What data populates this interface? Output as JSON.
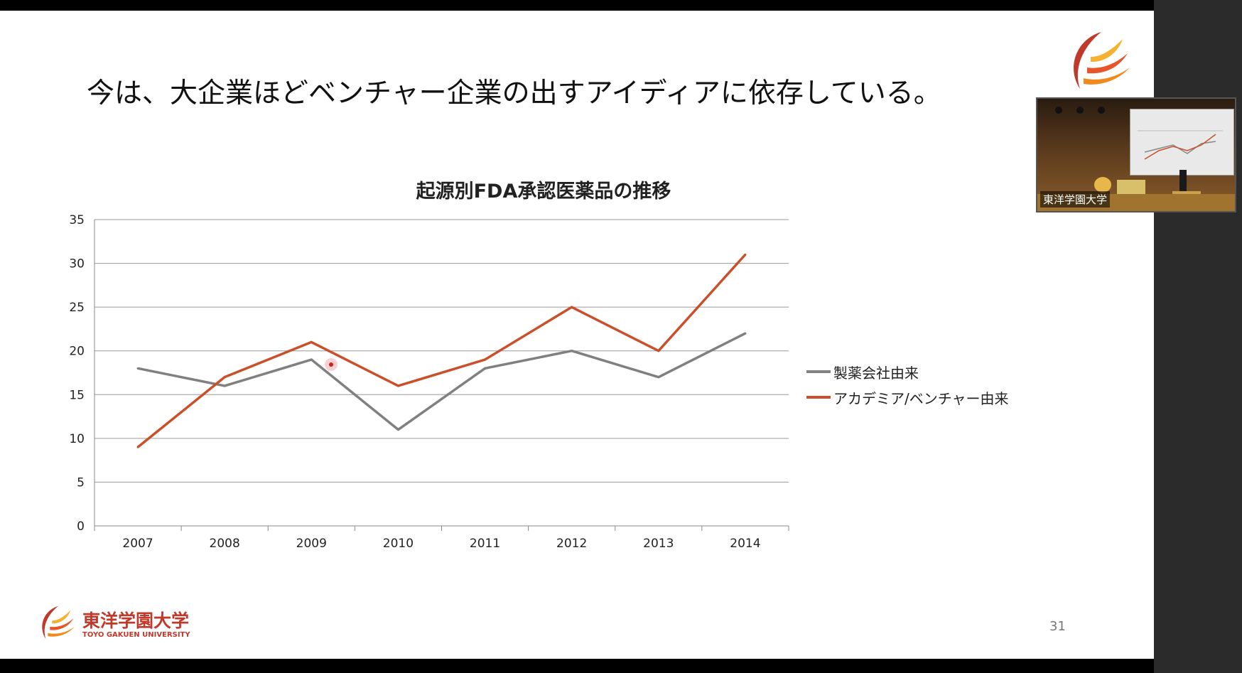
{
  "slide": {
    "title": "今は、大企業ほどベンチャー企業の出すアイディアに依存している。",
    "page_number": "31",
    "logo": {
      "jp": "東洋学園大学",
      "en": "TOYO GAKUEN UNIVERSITY"
    }
  },
  "camera": {
    "label": "東洋学園大学"
  },
  "colors": {
    "series_pharma": "#808080",
    "series_academia": "#c9502a",
    "grid": "#9a9a9a",
    "brand_red": "#c0392b",
    "brand_orange": "#f08a1c"
  },
  "chart_data": {
    "type": "line",
    "title": "起源別FDA承認医薬品の推移",
    "categories": [
      "2007",
      "2008",
      "2009",
      "2010",
      "2011",
      "2012",
      "2013",
      "2014"
    ],
    "series": [
      {
        "name": "製薬会社由来",
        "values": [
          18,
          16,
          19,
          11,
          18,
          20,
          17,
          22
        ]
      },
      {
        "name": "アカデミア/ベンチャー由来",
        "values": [
          9,
          17,
          21,
          16,
          19,
          25,
          20,
          31
        ]
      }
    ],
    "ylim": [
      0,
      35
    ],
    "yticks": [
      "0",
      "5",
      "10",
      "15",
      "20",
      "25",
      "30",
      "35"
    ],
    "grid": true,
    "legend": "right"
  }
}
